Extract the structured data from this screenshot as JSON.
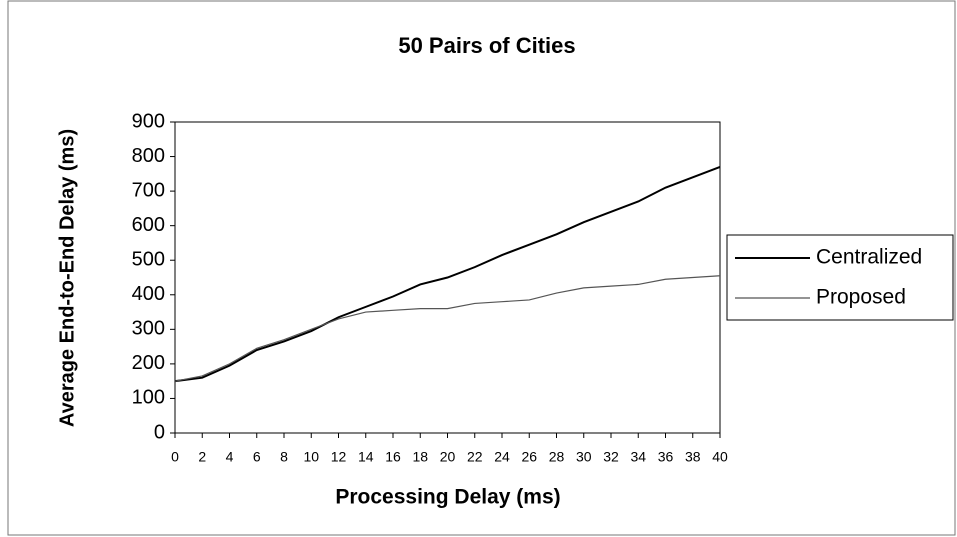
{
  "chart_data": {
    "type": "line",
    "title": "50 Pairs of Cities",
    "x_label": "Processing Delay (ms)",
    "y_label": "Average End-to-End Delay (ms)",
    "x": [
      0,
      2,
      4,
      6,
      8,
      10,
      12,
      14,
      16,
      18,
      20,
      22,
      24,
      26,
      28,
      30,
      32,
      34,
      36,
      38,
      40
    ],
    "series": [
      {
        "name": "Centralized",
        "color": "#000000",
        "values": [
          150,
          160,
          195,
          240,
          265,
          295,
          335,
          365,
          395,
          430,
          450,
          480,
          515,
          545,
          575,
          610,
          640,
          670,
          710,
          740,
          770
        ]
      },
      {
        "name": "Proposed",
        "color": "#555555",
        "values": [
          150,
          165,
          200,
          245,
          270,
          300,
          330,
          350,
          355,
          360,
          360,
          375,
          380,
          385,
          405,
          420,
          425,
          430,
          445,
          450,
          455
        ]
      }
    ],
    "xlim": [
      0,
      40
    ],
    "xticks": [
      0,
      2,
      4,
      6,
      8,
      10,
      12,
      14,
      16,
      18,
      20,
      22,
      24,
      26,
      28,
      30,
      32,
      34,
      36,
      38,
      40
    ],
    "ylim": [
      0,
      900
    ],
    "yticks": [
      0,
      100,
      200,
      300,
      400,
      500,
      600,
      700,
      800,
      900
    ],
    "legend": "right"
  }
}
